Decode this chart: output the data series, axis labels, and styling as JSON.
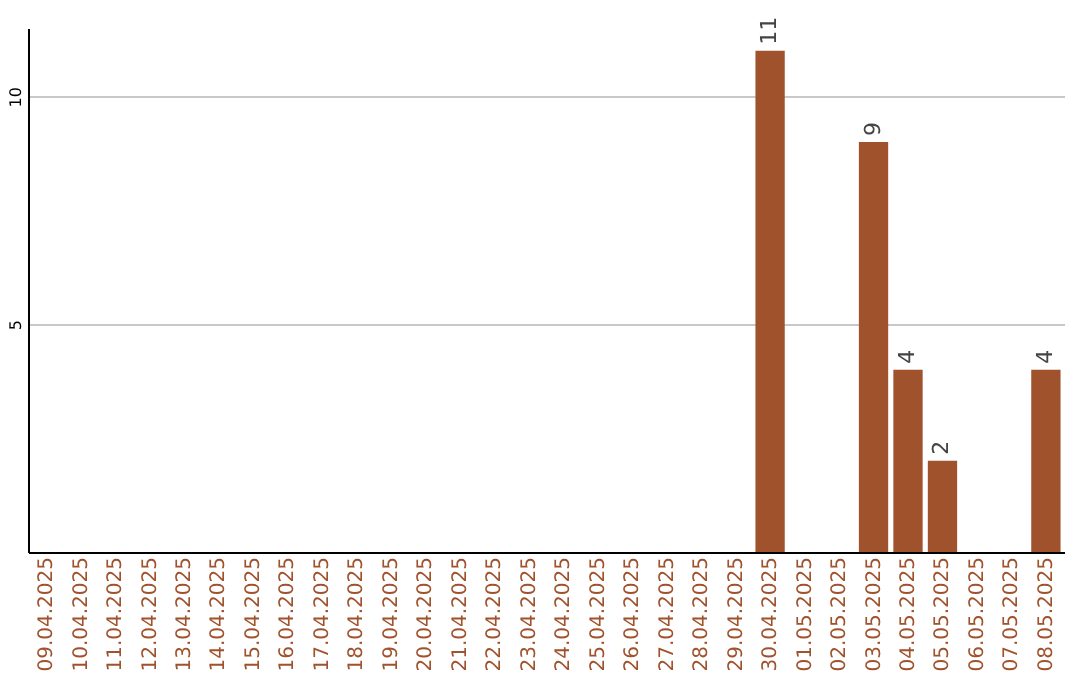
{
  "chart_data": {
    "type": "bar",
    "categories": [
      "09.04.2025",
      "10.04.2025",
      "11.04.2025",
      "12.04.2025",
      "13.04.2025",
      "14.04.2025",
      "15.04.2025",
      "16.04.2025",
      "17.04.2025",
      "18.04.2025",
      "19.04.2025",
      "20.04.2025",
      "21.04.2025",
      "22.04.2025",
      "23.04.2025",
      "24.04.2025",
      "25.04.2025",
      "26.04.2025",
      "27.04.2025",
      "28.04.2025",
      "29.04.2025",
      "30.04.2025",
      "01.05.2025",
      "02.05.2025",
      "03.05.2025",
      "04.05.2025",
      "05.05.2025",
      "06.05.2025",
      "07.05.2025",
      "08.05.2025"
    ],
    "values": [
      0,
      0,
      0,
      0,
      0,
      0,
      0,
      0,
      0,
      0,
      0,
      0,
      0,
      0,
      0,
      0,
      0,
      0,
      0,
      0,
      0,
      11,
      0,
      0,
      9,
      4,
      2,
      0,
      0,
      4
    ],
    "value_labels": [
      null,
      null,
      null,
      null,
      null,
      null,
      null,
      null,
      null,
      null,
      null,
      null,
      null,
      null,
      null,
      null,
      null,
      null,
      null,
      null,
      null,
      "11",
      null,
      null,
      "9",
      "4",
      "2",
      null,
      null,
      "4"
    ],
    "color": "#a0522d",
    "ylim": [
      0,
      11.5
    ],
    "yticks": [
      5,
      10
    ],
    "grid": "y"
  }
}
